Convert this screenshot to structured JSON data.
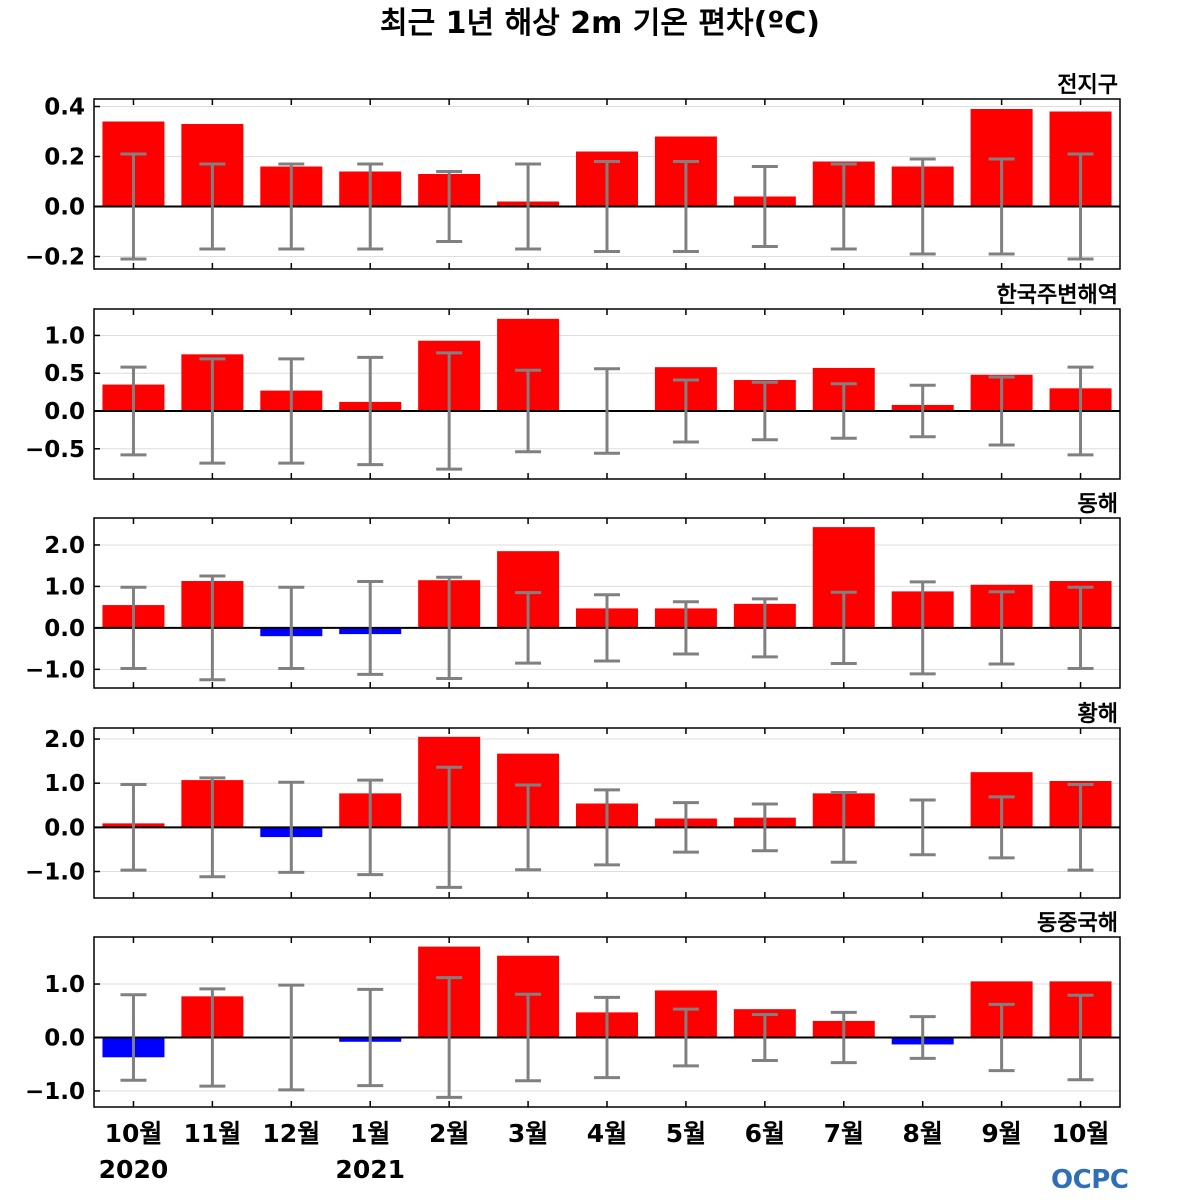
{
  "title": "최근 1년 해상 2m 기온 편차(ºC)",
  "logo": "OCPC",
  "colors": {
    "positive": "#ff0000",
    "negative": "#0000ff",
    "errorbar": "#808080",
    "logo": "#2f6fb5"
  },
  "chart_data": {
    "type": "bar",
    "categories": [
      "10월",
      "11월",
      "12월",
      "1월",
      "2월",
      "3월",
      "4월",
      "5월",
      "6월",
      "7월",
      "8월",
      "9월",
      "10월"
    ],
    "year_labels": [
      {
        "index": 0,
        "label": "2020"
      },
      {
        "index": 3,
        "label": "2021"
      }
    ],
    "panels": [
      {
        "label": "전지구",
        "ylim": [
          -0.25,
          0.43
        ],
        "yticks": [
          -0.2,
          0.0,
          0.2,
          0.4
        ],
        "tick_labels": [
          "−0.2",
          "0.0",
          "0.2",
          "0.4"
        ],
        "values": [
          0.34,
          0.33,
          0.16,
          0.14,
          0.13,
          0.02,
          0.22,
          0.28,
          0.04,
          0.18,
          0.16,
          0.39,
          0.38
        ],
        "error": [
          0.21,
          0.17,
          0.17,
          0.17,
          0.14,
          0.17,
          0.18,
          0.18,
          0.16,
          0.17,
          0.19,
          0.19,
          0.21
        ]
      },
      {
        "label": "한국주변해역",
        "ylim": [
          -0.9,
          1.35
        ],
        "yticks": [
          -0.5,
          0.0,
          0.5,
          1.0
        ],
        "tick_labels": [
          "−0.5",
          "0.0",
          "0.5",
          "1.0"
        ],
        "values": [
          0.35,
          0.75,
          0.27,
          0.12,
          0.93,
          1.22,
          0.01,
          0.58,
          0.41,
          0.57,
          0.08,
          0.48,
          0.3
        ],
        "error": [
          0.58,
          0.69,
          0.69,
          0.71,
          0.77,
          0.54,
          0.56,
          0.41,
          0.38,
          0.36,
          0.34,
          0.45,
          0.58
        ]
      },
      {
        "label": "동해",
        "ylim": [
          -1.45,
          2.65
        ],
        "yticks": [
          -1.0,
          0.0,
          1.0,
          2.0
        ],
        "tick_labels": [
          "−1.0",
          "0.0",
          "1.0",
          "2.0"
        ],
        "values": [
          0.55,
          1.13,
          -0.2,
          -0.15,
          1.15,
          1.85,
          0.47,
          0.47,
          0.58,
          2.43,
          0.88,
          1.04,
          1.13
        ],
        "error": [
          0.98,
          1.25,
          0.98,
          1.12,
          1.22,
          0.85,
          0.8,
          0.63,
          0.7,
          0.86,
          1.11,
          0.87,
          0.98
        ]
      },
      {
        "label": "황해",
        "ylim": [
          -1.6,
          2.25
        ],
        "yticks": [
          -1.0,
          0.0,
          1.0,
          2.0
        ],
        "tick_labels": [
          "−1.0",
          "0.0",
          "1.0",
          "2.0"
        ],
        "values": [
          0.09,
          1.07,
          -0.22,
          0.77,
          2.05,
          1.67,
          0.54,
          0.2,
          0.22,
          0.77,
          0.02,
          1.25,
          1.05
        ],
        "error": [
          0.97,
          1.12,
          1.02,
          1.07,
          1.36,
          0.96,
          0.85,
          0.56,
          0.53,
          0.79,
          0.62,
          0.69,
          0.97
        ]
      },
      {
        "label": "동중국해",
        "ylim": [
          -1.3,
          1.88
        ],
        "yticks": [
          -1.0,
          0.0,
          1.0
        ],
        "tick_labels": [
          "−1.0",
          "0.0",
          "1.0"
        ],
        "values": [
          -0.37,
          0.77,
          -0.01,
          -0.08,
          1.7,
          1.53,
          0.47,
          0.88,
          0.53,
          0.31,
          -0.13,
          1.05,
          1.05
        ],
        "error": [
          0.8,
          0.91,
          0.98,
          0.9,
          1.12,
          0.81,
          0.75,
          0.53,
          0.43,
          0.47,
          0.39,
          0.62,
          0.79
        ]
      }
    ]
  }
}
